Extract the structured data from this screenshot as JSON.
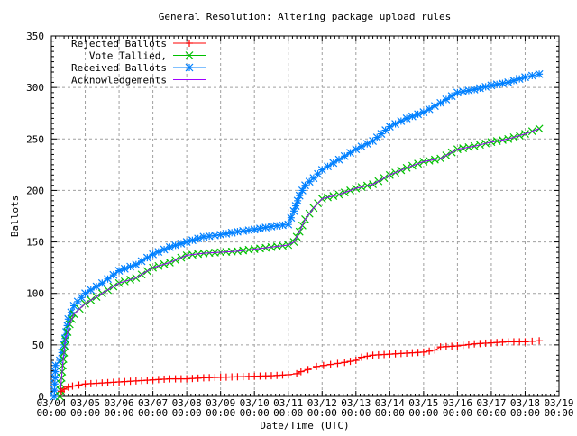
{
  "chart_data": {
    "type": "line",
    "title": "General Resolution: Altering package upload rules",
    "xlabel": "Date/Time (UTC)",
    "ylabel": "Ballots",
    "ylim": [
      0,
      350
    ],
    "yticks": [
      0,
      50,
      100,
      150,
      200,
      250,
      300,
      350
    ],
    "xlim": [
      "03/04 00:00",
      "03/19 00:00"
    ],
    "xticks": [
      "03/04",
      "03/05",
      "03/06",
      "03/07",
      "03/08",
      "03/09",
      "03/10",
      "03/11",
      "03/12",
      "03/13",
      "03/14",
      "03/15",
      "03/16",
      "03/17",
      "03/18",
      "03/19"
    ],
    "xtick_time": "00:00",
    "grid": true,
    "legend_position": "top-left",
    "series": [
      {
        "name": "Rejected Ballots",
        "color": "#ff0000",
        "marker": "plus",
        "x": [
          "03/04 07:00",
          "03/04 09:00",
          "03/04 12:00",
          "03/04 15:00",
          "03/05 00:00",
          "03/05 12:00",
          "03/06 12:00",
          "03/07 00:00",
          "03/07 12:00",
          "03/08 00:00",
          "03/08 12:00",
          "03/09 12:00",
          "03/10 12:00",
          "03/11 00:00",
          "03/11 06:00",
          "03/11 09:00",
          "03/11 14:00",
          "03/11 20:00",
          "03/12 06:00",
          "03/12 16:00",
          "03/13 00:00",
          "03/13 04:00",
          "03/13 12:00",
          "03/14 00:00",
          "03/14 12:00",
          "03/15 00:00",
          "03/15 08:00",
          "03/15 12:00",
          "03/16 00:00",
          "03/16 12:00",
          "03/17 00:00",
          "03/17 12:00",
          "03/18 00:00",
          "03/18 10:00"
        ],
        "y": [
          5,
          7,
          9,
          10,
          12,
          13,
          15,
          16,
          17,
          17,
          18,
          19,
          20,
          21,
          22,
          24,
          26,
          29,
          31,
          33,
          35,
          38,
          40,
          41,
          42,
          43,
          45,
          48,
          49,
          51,
          52,
          53,
          53,
          54
        ]
      },
      {
        "name": "Vote Tallied,",
        "color": "#00c000",
        "marker": "cross",
        "x": [
          "03/04 06:00",
          "03/04 08:00",
          "03/04 10:00",
          "03/04 13:00",
          "03/04 16:00",
          "03/05 00:00",
          "03/05 12:00",
          "03/06 00:00",
          "03/06 12:00",
          "03/07 00:00",
          "03/07 12:00",
          "03/08 00:00",
          "03/08 12:00",
          "03/09 00:00",
          "03/09 12:00",
          "03/10 00:00",
          "03/10 12:00",
          "03/11 00:00",
          "03/11 04:00",
          "03/11 08:00",
          "03/11 12:00",
          "03/11 18:00",
          "03/12 00:00",
          "03/12 12:00",
          "03/13 00:00",
          "03/13 12:00",
          "03/14 00:00",
          "03/14 12:00",
          "03/15 00:00",
          "03/15 12:00",
          "03/16 00:00",
          "03/16 12:00",
          "03/17 00:00",
          "03/17 12:00",
          "03/18 00:00",
          "03/18 10:00"
        ],
        "y": [
          0,
          30,
          55,
          70,
          80,
          90,
          100,
          110,
          115,
          125,
          130,
          137,
          139,
          140,
          141,
          143,
          145,
          147,
          150,
          160,
          172,
          183,
          192,
          196,
          202,
          206,
          215,
          222,
          228,
          231,
          240,
          243,
          247,
          250,
          255,
          260
        ]
      },
      {
        "name": "Received Ballots",
        "color": "#0080ff",
        "marker": "star",
        "x": [
          "03/04 02:00",
          "03/04 03:00",
          "03/04 06:00",
          "03/04 09:00",
          "03/04 12:00",
          "03/04 16:00",
          "03/05 00:00",
          "03/05 12:00",
          "03/06 00:00",
          "03/06 12:00",
          "03/07 00:00",
          "03/07 12:00",
          "03/08 00:00",
          "03/08 12:00",
          "03/09 00:00",
          "03/09 12:00",
          "03/10 00:00",
          "03/10 12:00",
          "03/11 00:00",
          "03/11 04:00",
          "03/11 08:00",
          "03/11 12:00",
          "03/11 18:00",
          "03/12 00:00",
          "03/12 12:00",
          "03/13 00:00",
          "03/13 12:00",
          "03/14 00:00",
          "03/14 12:00",
          "03/15 00:00",
          "03/15 12:00",
          "03/16 00:00",
          "03/16 12:00",
          "03/17 00:00",
          "03/17 12:00",
          "03/18 00:00",
          "03/18 10:00"
        ],
        "y": [
          0,
          30,
          35,
          50,
          75,
          88,
          100,
          110,
          122,
          128,
          138,
          145,
          150,
          155,
          157,
          160,
          162,
          165,
          167,
          180,
          195,
          205,
          212,
          220,
          230,
          240,
          248,
          262,
          270,
          276,
          285,
          295,
          298,
          302,
          305,
          310,
          313
        ]
      },
      {
        "name": "Acknowledgements",
        "color": "#a000ff",
        "marker": "none",
        "x": [
          "03/04 06:00",
          "03/04 08:00",
          "03/04 10:00",
          "03/04 13:00",
          "03/04 16:00",
          "03/05 00:00",
          "03/05 12:00",
          "03/06 00:00",
          "03/06 12:00",
          "03/07 00:00",
          "03/07 12:00",
          "03/08 00:00",
          "03/08 12:00",
          "03/09 00:00",
          "03/09 12:00",
          "03/10 00:00",
          "03/10 12:00",
          "03/11 00:00",
          "03/11 04:00",
          "03/11 08:00",
          "03/11 12:00",
          "03/11 18:00",
          "03/12 00:00",
          "03/12 12:00",
          "03/13 00:00",
          "03/13 12:00",
          "03/14 00:00",
          "03/14 12:00",
          "03/15 00:00",
          "03/15 12:00",
          "03/16 00:00",
          "03/16 12:00",
          "03/17 00:00",
          "03/17 12:00",
          "03/18 00:00",
          "03/18 10:00"
        ],
        "y": [
          0,
          30,
          55,
          70,
          80,
          90,
          100,
          110,
          115,
          125,
          130,
          137,
          139,
          140,
          141,
          143,
          145,
          147,
          150,
          160,
          172,
          183,
          192,
          196,
          202,
          206,
          215,
          222,
          228,
          231,
          240,
          243,
          247,
          250,
          255,
          260
        ]
      }
    ]
  }
}
